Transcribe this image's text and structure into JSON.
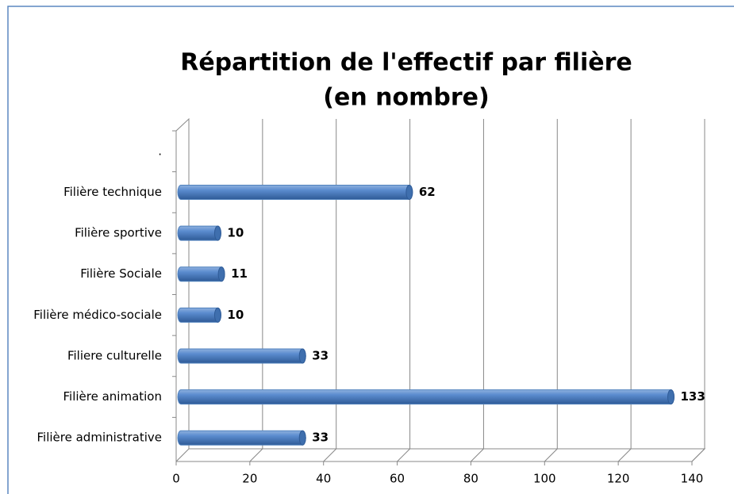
{
  "chart_data": {
    "type": "bar",
    "orientation": "horizontal",
    "title": [
      "Répartition de l'effectif par filière",
      "(en nombre)"
    ],
    "categories": [
      ".",
      "Filière technique",
      "Filière sportive",
      "Filière Sociale",
      "Filière médico-sociale",
      "Filiere culturelle",
      "Filière animation",
      "Filière administrative"
    ],
    "values": [
      null,
      62,
      10,
      11,
      10,
      33,
      133,
      33
    ],
    "color": "#4f81bd",
    "xlim": [
      0,
      140
    ],
    "xticks": [
      0,
      20,
      40,
      60,
      80,
      100,
      120,
      140
    ],
    "grid": true
  }
}
